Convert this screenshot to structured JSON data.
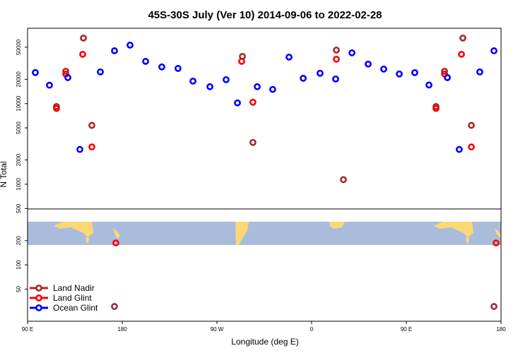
{
  "chart_data": {
    "type": "scatter",
    "title": "45S-30S July (Ver 10)   2014-09-06 to 2022-02-28",
    "xlabel": "Longitude (deg E)",
    "ylabel": "N Total",
    "xlim": [
      90,
      540
    ],
    "ylim": [
      20,
      86000
    ],
    "log_y": true,
    "legend": "lower left",
    "xticks": [
      {
        "value": 90,
        "label": "90 E"
      },
      180,
      {
        "value": 270,
        "label": "90 W"
      },
      {
        "value": 360,
        "label": "0"
      },
      {
        "value": 450,
        "label": "90 E"
      },
      {
        "value": 540,
        "label": "180"
      }
    ],
    "yticks": [
      50000,
      20000,
      10000,
      5000,
      2000,
      1000,
      500,
      200,
      100,
      50
    ],
    "series": [
      {
        "name": "Land Nadir",
        "color": "#a52a2a",
        "x": [
          117.5,
          126.3,
          143.1,
          151.1,
          172.6,
          294.2,
          304.2,
          383.5,
          390.2,
          478.2,
          486.3,
          503.7,
          511.8,
          533.3
        ],
        "values": [
          9200,
          25200,
          65000,
          5370,
          30.5,
          38500,
          3300,
          46100,
          1140,
          9200,
          25200,
          65000,
          5370,
          30.5
        ]
      },
      {
        "name": "Land Glint",
        "color": "#ff0000",
        "x": [
          117.5,
          126.3,
          142.4,
          151.1,
          173.9,
          293.5,
          304.2,
          383.5,
          478.2,
          486.3,
          502.4,
          511.8,
          535.3
        ],
        "values": [
          8700,
          23300,
          40900,
          2900,
          187,
          33400,
          10400,
          35500,
          8700,
          23300,
          40900,
          2900,
          187
        ]
      },
      {
        "name": "Ocean Glint",
        "color": "#0000ff",
        "x": [
          97.4,
          110.8,
          128.3,
          139.7,
          159.2,
          172.6,
          187.4,
          202.2,
          217.6,
          233,
          247.2,
          263.3,
          278.7,
          289.5,
          308.3,
          323,
          338.5,
          352,
          368,
          382.8,
          398.3,
          413.7,
          428.5,
          443.3,
          458,
          471.5,
          489,
          500.3,
          519.8,
          533.3
        ],
        "values": [
          24260,
          16900,
          21000,
          2700,
          24700,
          45200,
          53100,
          33400,
          28500,
          27300,
          19000,
          16200,
          19800,
          10200,
          16200,
          15000,
          37700,
          20600,
          23800,
          20200,
          42600,
          30900,
          26800,
          23300,
          24200,
          17000,
          21000,
          2700,
          24700,
          45200
        ]
      }
    ]
  }
}
